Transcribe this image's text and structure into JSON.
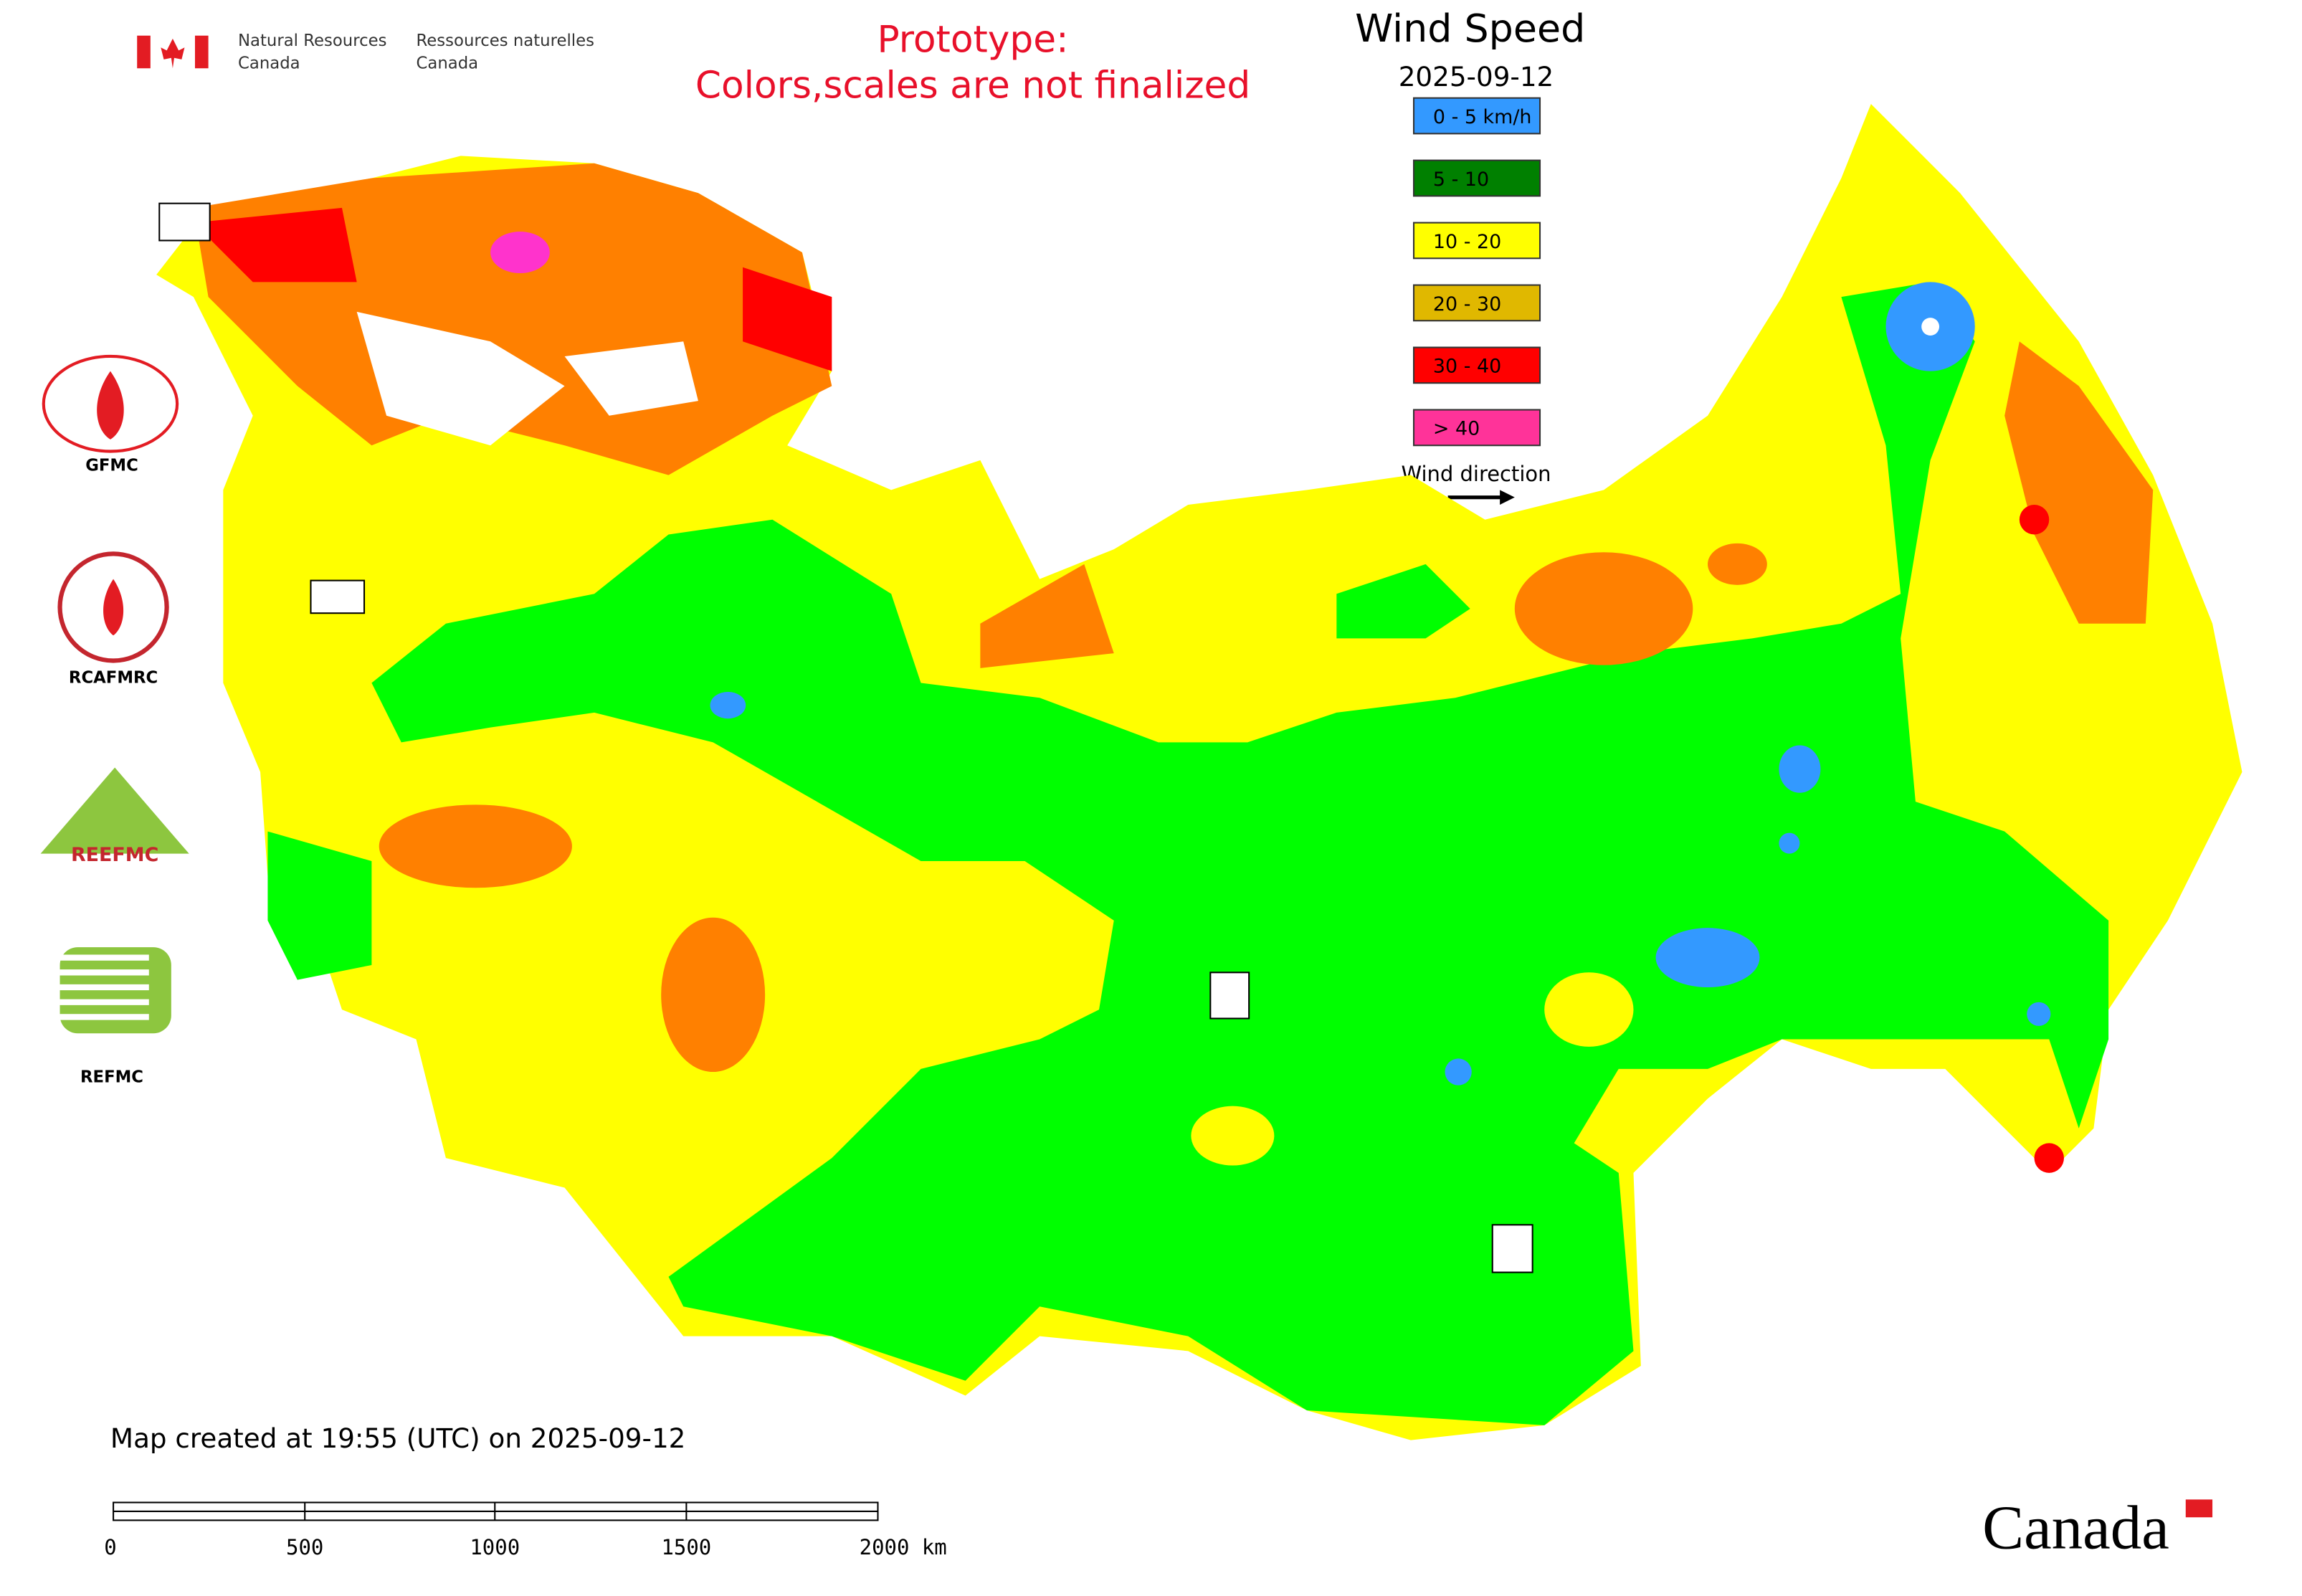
{
  "header": {
    "agency_en": [
      "Natural Resources",
      "Canada"
    ],
    "agency_fr": [
      "Ressources naturelles",
      "Canada"
    ],
    "notice": [
      "Prototype:",
      "Colors,scales are not finalized"
    ]
  },
  "title": "Wind Speed",
  "date": "2025-09-12",
  "legend": {
    "items": [
      {
        "label": "0 - 5 km/h",
        "color": "#3399ff"
      },
      {
        "label": "5 - 10",
        "color": "#008000"
      },
      {
        "label": "10 - 20",
        "color": "#ffff00"
      },
      {
        "label": "20 - 30",
        "color": "#e0b800"
      },
      {
        "label": "30 - 40",
        "color": "#ff0000"
      },
      {
        "label": "> 40",
        "color": "#ff3399"
      }
    ],
    "direction": "Wind direction"
  },
  "logos": [
    "GFMC",
    "RCAFMRC",
    "REEFMC",
    "REFMC"
  ],
  "created": "Map created at 19:55 (UTC) on 2025-09-12",
  "scale_bar": [
    "0",
    "500",
    "1000",
    "1500",
    "2000 km"
  ],
  "wordmark": "Canada"
}
